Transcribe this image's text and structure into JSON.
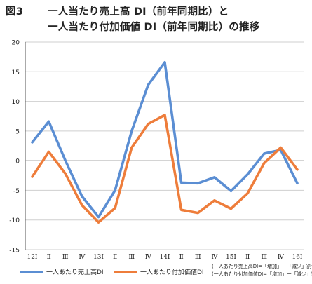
{
  "figure": {
    "number": "図3",
    "title_line1": "一人当たり売上高 DI（前年同期比）と",
    "title_line2": "一人当たり付加価値 DI（前年同期比）の推移"
  },
  "notes": [
    "(一人あたり売上高DI=「増加」ー「減少」割合)",
    "(一人あたり付加価値DI=「増加」ー「減少」割合)"
  ],
  "colors": {
    "series1": "#5b8ed3",
    "series2": "#ee7d3b",
    "grid": "#cfcfcf",
    "axis": "#555555"
  },
  "chart_data": {
    "type": "line",
    "categories": [
      "12Ⅰ",
      "Ⅱ",
      "Ⅲ",
      "Ⅳ",
      "13Ⅰ",
      "Ⅱ",
      "Ⅲ",
      "Ⅳ",
      "14Ⅰ",
      "Ⅱ",
      "Ⅲ",
      "Ⅳ",
      "15Ⅰ",
      "Ⅱ",
      "Ⅲ",
      "Ⅳ",
      "16Ⅰ"
    ],
    "series": [
      {
        "name": "一人あたり売上高DI",
        "values": [
          3.1,
          6.6,
          0.0,
          -6.0,
          -9.5,
          -5.0,
          5.0,
          12.8,
          16.6,
          -3.7,
          -3.8,
          -2.8,
          -5.1,
          -2.3,
          1.2,
          1.8,
          -3.8
        ]
      },
      {
        "name": "一人あたり付加価値DI",
        "values": [
          -2.7,
          1.5,
          -2.2,
          -7.5,
          -10.4,
          -8.0,
          2.2,
          6.2,
          7.7,
          -8.3,
          -8.8,
          -6.7,
          -8.1,
          -5.5,
          -0.4,
          2.2,
          -1.5
        ]
      }
    ],
    "ylim": [
      -15,
      20
    ],
    "yticks": [
      -15,
      -10,
      -5,
      0,
      5,
      10,
      15,
      20
    ],
    "grid": true,
    "legend_position": "bottom"
  }
}
